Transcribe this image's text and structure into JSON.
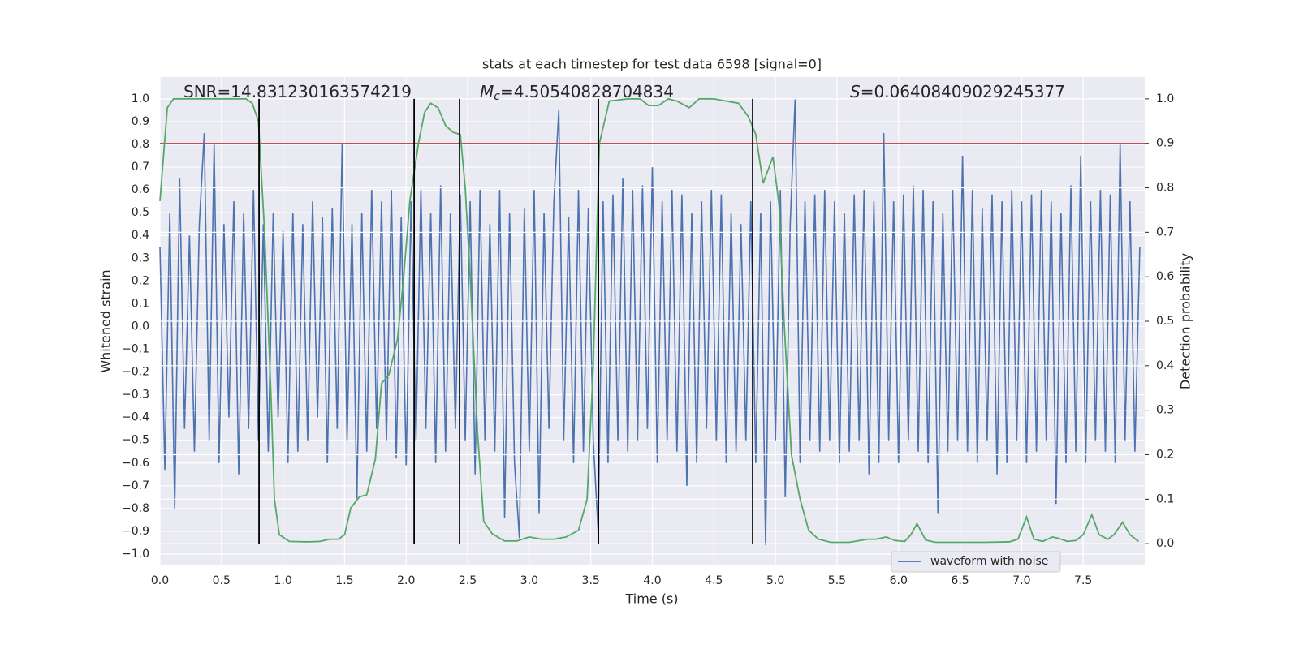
{
  "chart_data": {
    "type": "line",
    "title": "stats at each timestep for test data 6598 [signal=0]",
    "xlabel": "Time (s)",
    "ylabel": "Whitened strain",
    "y2label": "Detection probability",
    "annotations": [
      {
        "text": "SNR=14.831230163574219"
      },
      {
        "italic": "M",
        "subscript": "c",
        "text": "=4.50540828704834"
      },
      {
        "italic": "S",
        "text": "=0.06408409029245377"
      }
    ],
    "xlim": [
      0,
      8
    ],
    "ylim": [
      -1.05,
      1.096
    ],
    "y2lim": [
      -0.049,
      1.049
    ],
    "grid": true,
    "background": "#eaeaf2",
    "xticks": [
      {
        "value": 0,
        "label": "0.0"
      },
      {
        "value": 0.5,
        "label": "0.5"
      },
      {
        "value": 1,
        "label": "1.0"
      },
      {
        "value": 1.5,
        "label": "1.5"
      },
      {
        "value": 2,
        "label": "2.0"
      },
      {
        "value": 2.5,
        "label": "2.5"
      },
      {
        "value": 3,
        "label": "3.0"
      },
      {
        "value": 3.5,
        "label": "3.5"
      },
      {
        "value": 4,
        "label": "4.0"
      },
      {
        "value": 4.5,
        "label": "4.5"
      },
      {
        "value": 5,
        "label": "5.0"
      },
      {
        "value": 5.5,
        "label": "5.5"
      },
      {
        "value": 6,
        "label": "6.0"
      },
      {
        "value": 6.5,
        "label": "6.5"
      },
      {
        "value": 7,
        "label": "7.0"
      },
      {
        "value": 7.5,
        "label": "7.5"
      }
    ],
    "yticks": [
      {
        "value": -1,
        "label": "−1.0"
      },
      {
        "value": -0.9,
        "label": "−0.9"
      },
      {
        "value": -0.8,
        "label": "−0.8"
      },
      {
        "value": -0.7,
        "label": "−0.7"
      },
      {
        "value": -0.6,
        "label": "−0.6"
      },
      {
        "value": -0.5,
        "label": "−0.5"
      },
      {
        "value": -0.4,
        "label": "−0.4"
      },
      {
        "value": -0.3,
        "label": "−0.3"
      },
      {
        "value": -0.2,
        "label": "−0.2"
      },
      {
        "value": -0.1,
        "label": "−0.1"
      },
      {
        "value": 0,
        "label": "0.0"
      },
      {
        "value": 0.1,
        "label": "0.1"
      },
      {
        "value": 0.2,
        "label": "0.2"
      },
      {
        "value": 0.3,
        "label": "0.3"
      },
      {
        "value": 0.4,
        "label": "0.4"
      },
      {
        "value": 0.5,
        "label": "0.5"
      },
      {
        "value": 0.6,
        "label": "0.6"
      },
      {
        "value": 0.7,
        "label": "0.7"
      },
      {
        "value": 0.8,
        "label": "0.8"
      },
      {
        "value": 0.9,
        "label": "0.9"
      },
      {
        "value": 1,
        "label": "1.0"
      }
    ],
    "y2ticks": [
      {
        "value": 0,
        "label": "0.0"
      },
      {
        "value": 0.1,
        "label": "0.1"
      },
      {
        "value": 0.2,
        "label": "0.2"
      },
      {
        "value": 0.3,
        "label": "0.3"
      },
      {
        "value": 0.4,
        "label": "0.4"
      },
      {
        "value": 0.5,
        "label": "0.5"
      },
      {
        "value": 0.6,
        "label": "0.6"
      },
      {
        "value": 0.7,
        "label": "0.7"
      },
      {
        "value": 0.8,
        "label": "0.8"
      },
      {
        "value": 0.9,
        "label": "0.9"
      },
      {
        "value": 1,
        "label": "1.0"
      }
    ],
    "series": [
      {
        "name": "waveform with noise",
        "color": "#4c72b0",
        "x": [
          0,
          0.04,
          0.08,
          0.12,
          0.16,
          0.2,
          0.24,
          0.28,
          0.32,
          0.36,
          0.4,
          0.44,
          0.48,
          0.52,
          0.56,
          0.6,
          0.64,
          0.68,
          0.72,
          0.76,
          0.8,
          0.84,
          0.88,
          0.92,
          0.96,
          1,
          1.04,
          1.08,
          1.12,
          1.16,
          1.2,
          1.24,
          1.28,
          1.32,
          1.36,
          1.4,
          1.44,
          1.48,
          1.52,
          1.56,
          1.6,
          1.64,
          1.68,
          1.72,
          1.76,
          1.8,
          1.84,
          1.88,
          1.92,
          1.96,
          2,
          2.04,
          2.08,
          2.12,
          2.16,
          2.2,
          2.24,
          2.28,
          2.32,
          2.36,
          2.4,
          2.44,
          2.48,
          2.52,
          2.56,
          2.6,
          2.64,
          2.68,
          2.72,
          2.76,
          2.8,
          2.84,
          2.88,
          2.92,
          2.96,
          3,
          3.04,
          3.08,
          3.12,
          3.16,
          3.2,
          3.24,
          3.28,
          3.32,
          3.36,
          3.4,
          3.44,
          3.48,
          3.52,
          3.56,
          3.6,
          3.64,
          3.68,
          3.72,
          3.76,
          3.8,
          3.84,
          3.88,
          3.92,
          3.96,
          4,
          4.04,
          4.08,
          4.12,
          4.16,
          4.2,
          4.24,
          4.28,
          4.32,
          4.36,
          4.4,
          4.44,
          4.48,
          4.52,
          4.56,
          4.6,
          4.64,
          4.68,
          4.72,
          4.76,
          4.8,
          4.84,
          4.88,
          4.92,
          4.96,
          5,
          5.04,
          5.08,
          5.12,
          5.16,
          5.2,
          5.24,
          5.28,
          5.32,
          5.36,
          5.4,
          5.44,
          5.48,
          5.52,
          5.56,
          5.6,
          5.64,
          5.68,
          5.72,
          5.76,
          5.8,
          5.84,
          5.88,
          5.92,
          5.96,
          6,
          6.04,
          6.08,
          6.12,
          6.16,
          6.2,
          6.24,
          6.28,
          6.32,
          6.36,
          6.4,
          6.44,
          6.48,
          6.52,
          6.56,
          6.6,
          6.64,
          6.68,
          6.72,
          6.76,
          6.8,
          6.84,
          6.88,
          6.92,
          6.96,
          7,
          7.04,
          7.08,
          7.12,
          7.16,
          7.2,
          7.24,
          7.28,
          7.32,
          7.36,
          7.4,
          7.44,
          7.48,
          7.52,
          7.56,
          7.6,
          7.64,
          7.68,
          7.72,
          7.76,
          7.8,
          7.84,
          7.88,
          7.92,
          7.96
        ],
        "values": [
          0.35,
          -0.63,
          0.5,
          -0.8,
          0.65,
          -0.45,
          0.4,
          -0.55,
          0.45,
          0.85,
          -0.5,
          0.8,
          -0.6,
          0.45,
          -0.4,
          0.55,
          -0.65,
          0.5,
          -0.45,
          0.6,
          -0.5,
          0.45,
          -0.55,
          0.5,
          -0.4,
          0.42,
          -0.6,
          0.5,
          -0.55,
          0.45,
          -0.5,
          0.55,
          -0.4,
          0.48,
          -0.6,
          0.52,
          -0.45,
          0.8,
          -0.5,
          0.45,
          -0.76,
          0.5,
          -0.55,
          0.6,
          -0.45,
          0.55,
          -0.5,
          0.6,
          -0.58,
          0.48,
          -0.61,
          0.55,
          -0.5,
          0.6,
          -0.45,
          0.5,
          -0.6,
          0.62,
          -0.55,
          0.5,
          -0.45,
          0.58,
          -0.5,
          0.55,
          -0.65,
          0.6,
          -0.5,
          0.45,
          -0.55,
          0.6,
          -0.84,
          0.5,
          -0.6,
          -0.93,
          0.52,
          -0.55,
          0.6,
          -0.82,
          0.5,
          -0.45,
          0.55,
          0.95,
          -0.5,
          0.48,
          -0.6,
          0.6,
          -0.55,
          0.52,
          -0.5,
          -0.9,
          0.55,
          -0.6,
          0.58,
          -0.5,
          0.65,
          -0.55,
          0.6,
          -0.5,
          0.62,
          -0.45,
          0.7,
          -0.6,
          0.55,
          -0.5,
          0.6,
          -0.55,
          0.58,
          -0.7,
          0.5,
          -0.6,
          0.55,
          -0.45,
          0.6,
          -0.5,
          0.58,
          -0.6,
          0.5,
          -0.55,
          0.45,
          -0.5,
          0.55,
          -0.6,
          0.5,
          -0.96,
          0.55,
          -0.5,
          0.6,
          -0.75,
          0.45,
          1.0,
          -0.6,
          0.55,
          -0.5,
          0.58,
          -0.55,
          0.6,
          -0.5,
          0.55,
          -0.6,
          0.5,
          -0.55,
          0.58,
          -0.5,
          0.6,
          -0.65,
          0.55,
          -0.6,
          0.85,
          -0.5,
          0.55,
          -0.6,
          0.58,
          -0.5,
          0.62,
          -0.55,
          0.6,
          -0.6,
          0.55,
          -0.82,
          0.5,
          -0.55,
          0.6,
          -0.5,
          0.75,
          -0.55,
          0.6,
          -0.6,
          0.52,
          -0.5,
          0.58,
          -0.65,
          0.55,
          -0.6,
          0.6,
          -0.5,
          0.55,
          -0.6,
          0.58,
          -0.55,
          0.6,
          -0.5,
          0.55,
          -0.78,
          0.5,
          -0.6,
          0.62,
          -0.55,
          0.75,
          -0.6,
          0.55,
          -0.5,
          0.6,
          -0.55,
          0.58,
          -0.6,
          0.8,
          -0.5,
          0.55,
          -0.55,
          0.35
        ]
      },
      {
        "color": "#55a868",
        "axis": "y2",
        "x": [
          0,
          0.06,
          0.11,
          0.2,
          0.3,
          0.4,
          0.5,
          0.6,
          0.7,
          0.75,
          0.8,
          0.85,
          0.9,
          0.93,
          0.97,
          1.05,
          1.2,
          1.3,
          1.38,
          1.45,
          1.5,
          1.55,
          1.62,
          1.68,
          1.75,
          1.8,
          1.86,
          1.93,
          1.98,
          2.03,
          2.1,
          2.15,
          2.2,
          2.26,
          2.32,
          2.38,
          2.44,
          2.48,
          2.52,
          2.58,
          2.63,
          2.7,
          2.8,
          2.9,
          3.0,
          3.1,
          3.2,
          3.3,
          3.4,
          3.47,
          3.52,
          3.57,
          3.65,
          3.8,
          3.9,
          3.97,
          4.05,
          4.13,
          4.2,
          4.3,
          4.38,
          4.5,
          4.6,
          4.7,
          4.78,
          4.84,
          4.9,
          4.98,
          5.03,
          5.07,
          5.13,
          5.2,
          5.27,
          5.35,
          5.45,
          5.6,
          5.75,
          5.82,
          5.9,
          5.97,
          6.05,
          6.1,
          6.15,
          6.22,
          6.3,
          6.5,
          6.7,
          6.9,
          6.97,
          7.04,
          7.1,
          7.17,
          7.25,
          7.3,
          7.37,
          7.44,
          7.5,
          7.57,
          7.63,
          7.7,
          7.75,
          7.82,
          7.88,
          7.95
        ],
        "values": [
          0.77,
          0.98,
          1.0,
          1.0,
          1.0,
          1.0,
          1.0,
          1.0,
          1.0,
          0.99,
          0.95,
          0.7,
          0.35,
          0.1,
          0.02,
          0.005,
          0.004,
          0.005,
          0.01,
          0.01,
          0.02,
          0.08,
          0.105,
          0.11,
          0.19,
          0.36,
          0.38,
          0.46,
          0.6,
          0.77,
          0.9,
          0.97,
          0.99,
          0.98,
          0.94,
          0.925,
          0.92,
          0.8,
          0.6,
          0.25,
          0.05,
          0.022,
          0.006,
          0.006,
          0.015,
          0.01,
          0.01,
          0.015,
          0.03,
          0.1,
          0.4,
          0.9,
          0.995,
          1.0,
          1.0,
          0.985,
          0.985,
          1.0,
          0.995,
          0.98,
          1.0,
          1.0,
          0.995,
          0.99,
          0.96,
          0.92,
          0.81,
          0.87,
          0.76,
          0.5,
          0.2,
          0.1,
          0.03,
          0.01,
          0.003,
          0.003,
          0.01,
          0.01,
          0.015,
          0.007,
          0.005,
          0.02,
          0.045,
          0.008,
          0.003,
          0.003,
          0.003,
          0.004,
          0.01,
          0.06,
          0.01,
          0.005,
          0.015,
          0.012,
          0.005,
          0.007,
          0.02,
          0.065,
          0.02,
          0.01,
          0.02,
          0.048,
          0.02,
          0.005
        ]
      }
    ],
    "threshold": {
      "value": 0.9,
      "axis": "y2",
      "color": "#c44e52"
    },
    "vlines": {
      "x": [
        0.805,
        2.065,
        2.434,
        3.562,
        4.815
      ],
      "color": "#000000"
    }
  }
}
